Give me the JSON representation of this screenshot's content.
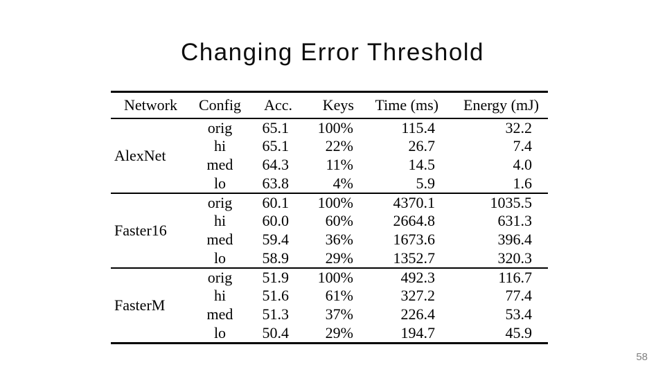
{
  "slide": {
    "title": "Changing Error Threshold",
    "page_number": "58",
    "background_color": "#ffffff",
    "title_color": "#0d0d0d",
    "page_number_color": "#808080"
  },
  "table": {
    "rule_color": "#000000",
    "columns": [
      "Network",
      "Config",
      "Acc.",
      "Keys",
      "Time (ms)",
      "Energy (mJ)"
    ],
    "groups": [
      {
        "network": "AlexNet",
        "rows": [
          {
            "config": "orig",
            "acc": "65.1",
            "keys": "100%",
            "time": "115.4",
            "energy": "32.2"
          },
          {
            "config": "hi",
            "acc": "65.1",
            "keys": "22%",
            "time": "26.7",
            "energy": "7.4"
          },
          {
            "config": "med",
            "acc": "64.3",
            "keys": "11%",
            "time": "14.5",
            "energy": "4.0"
          },
          {
            "config": "lo",
            "acc": "63.8",
            "keys": "4%",
            "time": "5.9",
            "energy": "1.6"
          }
        ]
      },
      {
        "network": "Faster16",
        "rows": [
          {
            "config": "orig",
            "acc": "60.1",
            "keys": "100%",
            "time": "4370.1",
            "energy": "1035.5"
          },
          {
            "config": "hi",
            "acc": "60.0",
            "keys": "60%",
            "time": "2664.8",
            "energy": "631.3"
          },
          {
            "config": "med",
            "acc": "59.4",
            "keys": "36%",
            "time": "1673.6",
            "energy": "396.4"
          },
          {
            "config": "lo",
            "acc": "58.9",
            "keys": "29%",
            "time": "1352.7",
            "energy": "320.3"
          }
        ]
      },
      {
        "network": "FasterM",
        "rows": [
          {
            "config": "orig",
            "acc": "51.9",
            "keys": "100%",
            "time": "492.3",
            "energy": "116.7"
          },
          {
            "config": "hi",
            "acc": "51.6",
            "keys": "61%",
            "time": "327.2",
            "energy": "77.4"
          },
          {
            "config": "med",
            "acc": "51.3",
            "keys": "37%",
            "time": "226.4",
            "energy": "53.4"
          },
          {
            "config": "lo",
            "acc": "50.4",
            "keys": "29%",
            "time": "194.7",
            "energy": "45.9"
          }
        ]
      }
    ]
  },
  "chart_data": {
    "type": "table",
    "title": "Changing Error Threshold",
    "columns": [
      "Network",
      "Config",
      "Acc.",
      "Keys",
      "Time (ms)",
      "Energy (mJ)"
    ],
    "rows": [
      [
        "AlexNet",
        "orig",
        "65.1",
        "100%",
        "115.4",
        "32.2"
      ],
      [
        "AlexNet",
        "hi",
        "65.1",
        "22%",
        "26.7",
        "7.4"
      ],
      [
        "AlexNet",
        "med",
        "64.3",
        "11%",
        "14.5",
        "4.0"
      ],
      [
        "AlexNet",
        "lo",
        "63.8",
        "4%",
        "5.9",
        "1.6"
      ],
      [
        "Faster16",
        "orig",
        "60.1",
        "100%",
        "4370.1",
        "1035.5"
      ],
      [
        "Faster16",
        "hi",
        "60.0",
        "60%",
        "2664.8",
        "631.3"
      ],
      [
        "Faster16",
        "med",
        "59.4",
        "36%",
        "1673.6",
        "396.4"
      ],
      [
        "Faster16",
        "lo",
        "58.9",
        "29%",
        "1352.7",
        "320.3"
      ],
      [
        "FasterM",
        "orig",
        "51.9",
        "100%",
        "492.3",
        "116.7"
      ],
      [
        "FasterM",
        "hi",
        "51.6",
        "61%",
        "327.2",
        "77.4"
      ],
      [
        "FasterM",
        "med",
        "51.3",
        "37%",
        "226.4",
        "53.4"
      ],
      [
        "FasterM",
        "lo",
        "50.4",
        "29%",
        "194.7",
        "45.9"
      ]
    ]
  }
}
